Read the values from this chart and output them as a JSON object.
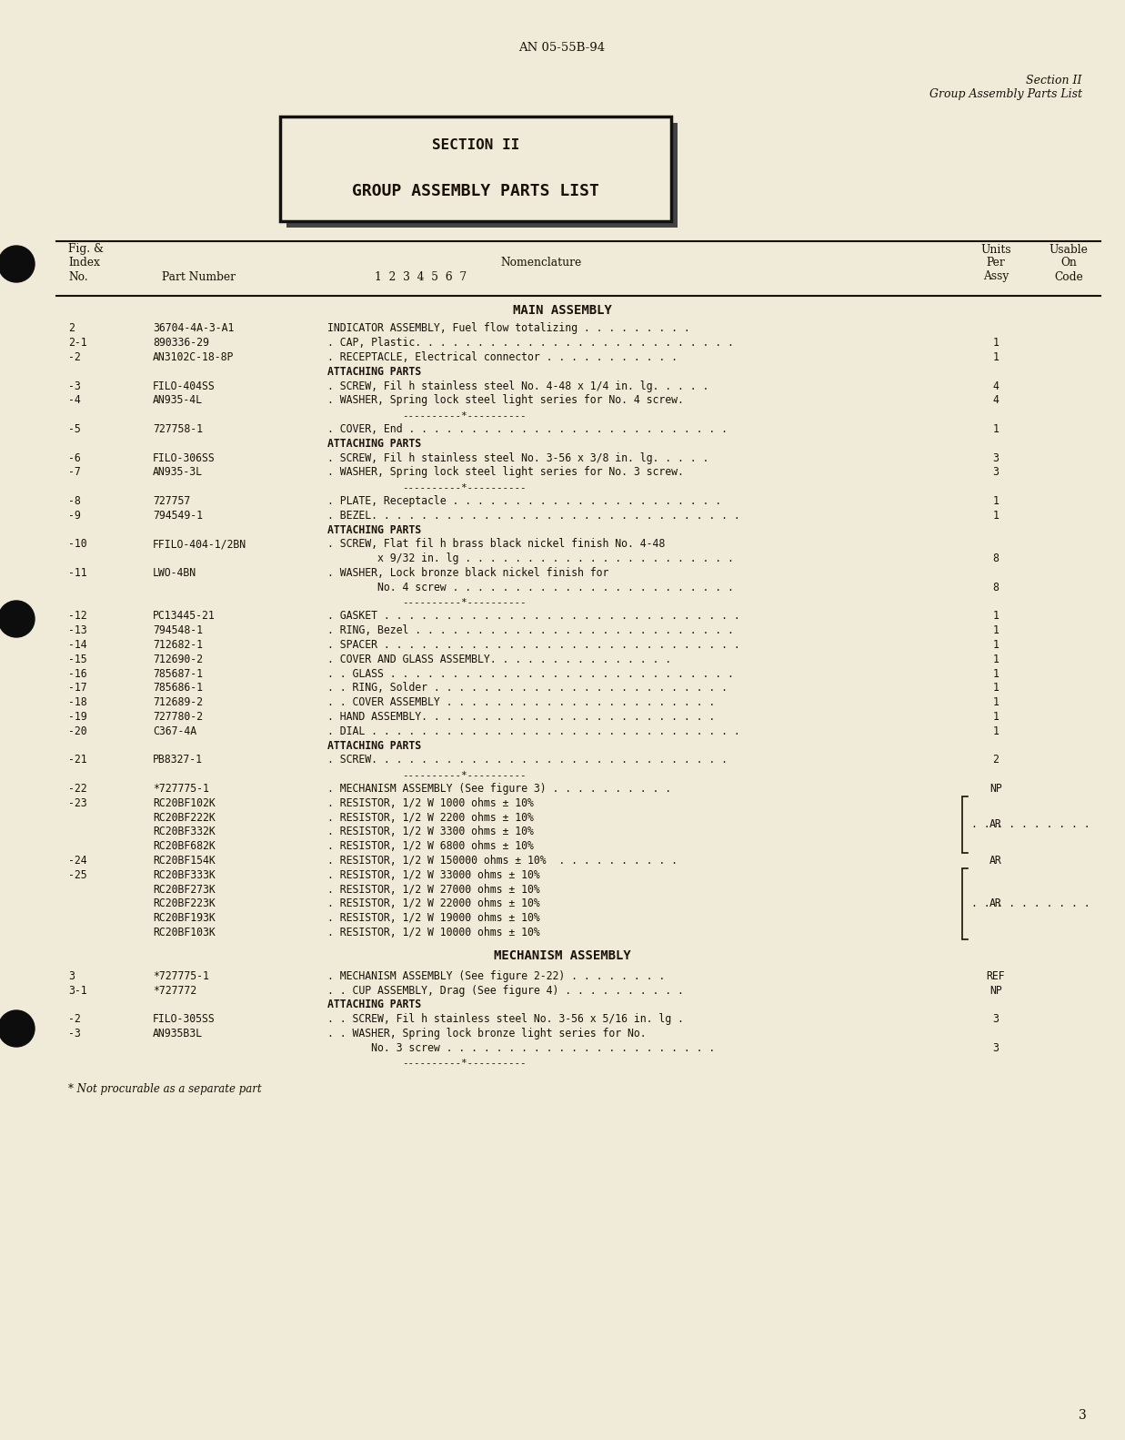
{
  "bg_color": "#f0ead8",
  "header_doc_num": "AN 05-55B-94",
  "header_section": "Section II",
  "header_section_sub": "Group Assembly Parts List",
  "section_box_line1": "SECTION II",
  "section_box_line2": "GROUP ASSEMBLY PARTS LIST",
  "main_assembly_header": "MAIN ASSEMBLY",
  "mechanism_assembly_header": "MECHANISM ASSEMBLY",
  "footer_note": "* Not procurable as a separate part",
  "page_number": "3",
  "rows": [
    {
      "fig": "2",
      "part": "36704-4A-3-A1",
      "nom": "INDICATOR ASSEMBLY, Fuel flow totalizing . . . . . . . . .",
      "units": "",
      "sep": false,
      "sec": false,
      "b_start": false,
      "b_mid": false,
      "b_end": false
    },
    {
      "fig": "2-1",
      "part": "890336-29",
      "nom": ". CAP, Plastic. . . . . . . . . . . . . . . . . . . . . . . . . .",
      "units": "1",
      "sep": false,
      "sec": false,
      "b_start": false,
      "b_mid": false,
      "b_end": false
    },
    {
      "fig": "-2",
      "part": "AN3102C-18-8P",
      "nom": ". RECEPTACLE, Electrical connector . . . . . . . . . . .",
      "units": "1",
      "sep": false,
      "sec": false,
      "b_start": false,
      "b_mid": false,
      "b_end": false
    },
    {
      "fig": "",
      "part": "",
      "nom": "ATTACHING PARTS",
      "units": "",
      "sep": false,
      "sec": true,
      "b_start": false,
      "b_mid": false,
      "b_end": false
    },
    {
      "fig": "-3",
      "part": "FILO-404SS",
      "nom": ". SCREW, Fil h stainless steel No. 4-48 x 1/4 in. lg. . . . .",
      "units": "4",
      "sep": false,
      "sec": false,
      "b_start": false,
      "b_mid": false,
      "b_end": false
    },
    {
      "fig": "-4",
      "part": "AN935-4L",
      "nom": ". WASHER, Spring lock steel light series for No. 4 screw.",
      "units": "4",
      "sep": false,
      "sec": false,
      "b_start": false,
      "b_mid": false,
      "b_end": false
    },
    {
      "fig": "",
      "part": "",
      "nom": "----------*----------",
      "units": "",
      "sep": true,
      "sec": false,
      "b_start": false,
      "b_mid": false,
      "b_end": false
    },
    {
      "fig": "-5",
      "part": "727758-1",
      "nom": ". COVER, End . . . . . . . . . . . . . . . . . . . . . . . . . .",
      "units": "1",
      "sep": false,
      "sec": false,
      "b_start": false,
      "b_mid": false,
      "b_end": false
    },
    {
      "fig": "",
      "part": "",
      "nom": "ATTACHING PARTS",
      "units": "",
      "sep": false,
      "sec": true,
      "b_start": false,
      "b_mid": false,
      "b_end": false
    },
    {
      "fig": "-6",
      "part": "FILO-306SS",
      "nom": ". SCREW, Fil h stainless steel No. 3-56 x 3/8 in. lg. . . . .",
      "units": "3",
      "sep": false,
      "sec": false,
      "b_start": false,
      "b_mid": false,
      "b_end": false
    },
    {
      "fig": "-7",
      "part": "AN935-3L",
      "nom": ". WASHER, Spring lock steel light series for No. 3 screw.",
      "units": "3",
      "sep": false,
      "sec": false,
      "b_start": false,
      "b_mid": false,
      "b_end": false
    },
    {
      "fig": "",
      "part": "",
      "nom": "----------*----------",
      "units": "",
      "sep": true,
      "sec": false,
      "b_start": false,
      "b_mid": false,
      "b_end": false
    },
    {
      "fig": "-8",
      "part": "727757",
      "nom": ". PLATE, Receptacle . . . . . . . . . . . . . . . . . . . . . .",
      "units": "1",
      "sep": false,
      "sec": false,
      "b_start": false,
      "b_mid": false,
      "b_end": false
    },
    {
      "fig": "-9",
      "part": "794549-1",
      "nom": ". BEZEL. . . . . . . . . . . . . . . . . . . . . . . . . . . . . .",
      "units": "1",
      "sep": false,
      "sec": false,
      "b_start": false,
      "b_mid": false,
      "b_end": false
    },
    {
      "fig": "",
      "part": "",
      "nom": "ATTACHING PARTS",
      "units": "",
      "sep": false,
      "sec": true,
      "b_start": false,
      "b_mid": false,
      "b_end": false
    },
    {
      "fig": "-10",
      "part": "FFILO-404-1/2BN",
      "nom": ". SCREW, Flat fil h brass black nickel finish No. 4-48",
      "units": "",
      "sep": false,
      "sec": false,
      "b_start": false,
      "b_mid": false,
      "b_end": false
    },
    {
      "fig": "",
      "part": "",
      "nom": "        x 9/32 in. lg . . . . . . . . . . . . . . . . . . . . . .",
      "units": "8",
      "sep": false,
      "sec": false,
      "b_start": false,
      "b_mid": false,
      "b_end": false
    },
    {
      "fig": "-11",
      "part": "LWO-4BN",
      "nom": ". WASHER, Lock bronze black nickel finish for",
      "units": "",
      "sep": false,
      "sec": false,
      "b_start": false,
      "b_mid": false,
      "b_end": false
    },
    {
      "fig": "",
      "part": "",
      "nom": "        No. 4 screw . . . . . . . . . . . . . . . . . . . . . . .",
      "units": "8",
      "sep": false,
      "sec": false,
      "b_start": false,
      "b_mid": false,
      "b_end": false
    },
    {
      "fig": "",
      "part": "",
      "nom": "----------*----------",
      "units": "",
      "sep": true,
      "sec": false,
      "b_start": false,
      "b_mid": false,
      "b_end": false
    },
    {
      "fig": "-12",
      "part": "PC13445-21",
      "nom": ". GASKET . . . . . . . . . . . . . . . . . . . . . . . . . . . . .",
      "units": "1",
      "sep": false,
      "sec": false,
      "b_start": false,
      "b_mid": false,
      "b_end": false
    },
    {
      "fig": "-13",
      "part": "794548-1",
      "nom": ". RING, Bezel . . . . . . . . . . . . . . . . . . . . . . . . . .",
      "units": "1",
      "sep": false,
      "sec": false,
      "b_start": false,
      "b_mid": false,
      "b_end": false
    },
    {
      "fig": "-14",
      "part": "712682-1",
      "nom": ". SPACER . . . . . . . . . . . . . . . . . . . . . . . . . . . . .",
      "units": "1",
      "sep": false,
      "sec": false,
      "b_start": false,
      "b_mid": false,
      "b_end": false
    },
    {
      "fig": "-15",
      "part": "712690-2",
      "nom": ". COVER AND GLASS ASSEMBLY. . . . . . . . . . . . . . .",
      "units": "1",
      "sep": false,
      "sec": false,
      "b_start": false,
      "b_mid": false,
      "b_end": false
    },
    {
      "fig": "-16",
      "part": "785687-1",
      "nom": ". . GLASS . . . . . . . . . . . . . . . . . . . . . . . . . . . .",
      "units": "1",
      "sep": false,
      "sec": false,
      "b_start": false,
      "b_mid": false,
      "b_end": false
    },
    {
      "fig": "-17",
      "part": "785686-1",
      "nom": ". . RING, Solder . . . . . . . . . . . . . . . . . . . . . . . .",
      "units": "1",
      "sep": false,
      "sec": false,
      "b_start": false,
      "b_mid": false,
      "b_end": false
    },
    {
      "fig": "-18",
      "part": "712689-2",
      "nom": ". . COVER ASSEMBLY . . . . . . . . . . . . . . . . . . . . . .",
      "units": "1",
      "sep": false,
      "sec": false,
      "b_start": false,
      "b_mid": false,
      "b_end": false
    },
    {
      "fig": "-19",
      "part": "727780-2",
      "nom": ". HAND ASSEMBLY. . . . . . . . . . . . . . . . . . . . . . . .",
      "units": "1",
      "sep": false,
      "sec": false,
      "b_start": false,
      "b_mid": false,
      "b_end": false
    },
    {
      "fig": "-20",
      "part": "C367-4A",
      "nom": ". DIAL . . . . . . . . . . . . . . . . . . . . . . . . . . . . . .",
      "units": "1",
      "sep": false,
      "sec": false,
      "b_start": false,
      "b_mid": false,
      "b_end": false
    },
    {
      "fig": "",
      "part": "",
      "nom": "ATTACHING PARTS",
      "units": "",
      "sep": false,
      "sec": true,
      "b_start": false,
      "b_mid": false,
      "b_end": false
    },
    {
      "fig": "-21",
      "part": "PB8327-1",
      "nom": ". SCREW. . . . . . . . . . . . . . . . . . . . . . . . . . . . .",
      "units": "2",
      "sep": false,
      "sec": false,
      "b_start": false,
      "b_mid": false,
      "b_end": false
    },
    {
      "fig": "",
      "part": "",
      "nom": "----------*----------",
      "units": "",
      "sep": true,
      "sec": false,
      "b_start": false,
      "b_mid": false,
      "b_end": false
    },
    {
      "fig": "-22",
      "part": "*727775-1",
      "nom": ". MECHANISM ASSEMBLY (See figure 3) . . . . . . . . . .",
      "units": "NP",
      "sep": false,
      "sec": false,
      "b_start": false,
      "b_mid": false,
      "b_end": false
    },
    {
      "fig": "-23",
      "part": "RC20BF102K",
      "nom": ". RESISTOR, 1/2 W 1000 ohms ± 10%",
      "units": "",
      "sep": false,
      "sec": false,
      "b_start": true,
      "b_mid": false,
      "b_end": false
    },
    {
      "fig": "",
      "part": "RC20BF222K",
      "nom": ". RESISTOR, 1/2 W 2200 ohms ± 10%",
      "units": "",
      "sep": false,
      "sec": false,
      "b_start": false,
      "b_mid": true,
      "b_end": false
    },
    {
      "fig": "",
      "part": "RC20BF332K",
      "nom": ". RESISTOR, 1/2 W 3300 ohms ± 10%",
      "units": "",
      "sep": false,
      "sec": false,
      "b_start": false,
      "b_mid": true,
      "b_end": false
    },
    {
      "fig": "",
      "part": "RC20BF682K",
      "nom": ". RESISTOR, 1/2 W 6800 ohms ± 10%",
      "units": "AR",
      "sep": false,
      "sec": false,
      "b_start": false,
      "b_mid": false,
      "b_end": true
    },
    {
      "fig": "-24",
      "part": "RC20BF154K",
      "nom": ". RESISTOR, 1/2 W 150000 ohms ± 10%  . . . . . . . . . .",
      "units": "AR",
      "sep": false,
      "sec": false,
      "b_start": false,
      "b_mid": false,
      "b_end": false
    },
    {
      "fig": "-25",
      "part": "RC20BF333K",
      "nom": ". RESISTOR, 1/2 W 33000 ohms ± 10%",
      "units": "",
      "sep": false,
      "sec": false,
      "b_start": true,
      "b_mid": false,
      "b_end": false
    },
    {
      "fig": "",
      "part": "RC20BF273K",
      "nom": ". RESISTOR, 1/2 W 27000 ohms ± 10%",
      "units": "",
      "sep": false,
      "sec": false,
      "b_start": false,
      "b_mid": true,
      "b_end": false
    },
    {
      "fig": "",
      "part": "RC20BF223K",
      "nom": ". RESISTOR, 1/2 W 22000 ohms ± 10%",
      "units": "",
      "sep": false,
      "sec": false,
      "b_start": false,
      "b_mid": true,
      "b_end": false
    },
    {
      "fig": "",
      "part": "RC20BF193K",
      "nom": ". RESISTOR, 1/2 W 19000 ohms ± 10%",
      "units": "",
      "sep": false,
      "sec": false,
      "b_start": false,
      "b_mid": true,
      "b_end": false
    },
    {
      "fig": "",
      "part": "RC20BF103K",
      "nom": ". RESISTOR, 1/2 W 10000 ohms ± 10%",
      "units": "AR",
      "sep": false,
      "sec": false,
      "b_start": false,
      "b_mid": false,
      "b_end": true
    }
  ],
  "mech_rows": [
    {
      "fig": "3",
      "part": "*727775-1",
      "nom": ". MECHANISM ASSEMBLY (See figure 2-22) . . . . . . . .",
      "units": "REF",
      "sep": false,
      "sec": false
    },
    {
      "fig": "3-1",
      "part": "*727772",
      "nom": ". . CUP ASSEMBLY, Drag (See figure 4) . . . . . . . . . .",
      "units": "NP",
      "sep": false,
      "sec": false
    },
    {
      "fig": "",
      "part": "",
      "nom": "ATTACHING PARTS",
      "units": "",
      "sep": false,
      "sec": true
    },
    {
      "fig": "-2",
      "part": "FILO-305SS",
      "nom": ". . SCREW, Fil h stainless steel No. 3-56 x 5/16 in. lg .",
      "units": "3",
      "sep": false,
      "sec": false
    },
    {
      "fig": "-3",
      "part": "AN935B3L",
      "nom": ". . WASHER, Spring lock bronze light series for No.",
      "units": "",
      "sep": false,
      "sec": false
    },
    {
      "fig": "",
      "part": "",
      "nom": "       No. 3 screw . . . . . . . . . . . . . . . . . . . . . .",
      "units": "3",
      "sep": false,
      "sec": false
    },
    {
      "fig": "",
      "part": "",
      "nom": "----------*----------",
      "units": "",
      "sep": true,
      "sec": false
    }
  ]
}
